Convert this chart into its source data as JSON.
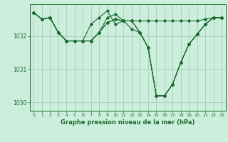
{
  "title": "Graphe pression niveau de la mer (hPa)",
  "xlabel": "Graphe pression niveau de la mer (hPa)",
  "xlim": [
    -0.5,
    23.5
  ],
  "ylim": [
    1029.75,
    1032.95
  ],
  "yticks": [
    1030,
    1031,
    1032
  ],
  "xticks": [
    0,
    1,
    2,
    3,
    4,
    5,
    6,
    7,
    8,
    9,
    10,
    11,
    12,
    13,
    14,
    15,
    16,
    17,
    18,
    19,
    20,
    21,
    22,
    23
  ],
  "bg_color": "#cceedd",
  "grid_color": "#aaccbb",
  "line_color": "#1a6b2a",
  "series": [
    [
      1032.7,
      1032.5,
      1032.55,
      1032.1,
      1031.85,
      1031.85,
      1031.85,
      1031.85,
      1032.1,
      1032.4,
      1032.5,
      1032.45,
      1032.45,
      1032.45,
      1032.45,
      1032.45,
      1032.45,
      1032.45,
      1032.45,
      1032.45,
      1032.45,
      1032.5,
      1032.55,
      1032.55
    ],
    [
      1032.7,
      1032.5,
      1032.55,
      1032.1,
      1031.85,
      1031.85,
      1031.85,
      1031.85,
      1032.1,
      1032.55,
      1032.65,
      1032.45,
      1032.45,
      1032.1,
      1031.65,
      1030.2,
      1030.2,
      1030.55,
      1031.2,
      1031.75,
      1032.05,
      1032.35,
      1032.55,
      1032.55
    ],
    [
      1032.7,
      1032.5,
      1032.55,
      1032.1,
      1031.85,
      1031.85,
      1031.85,
      1032.35,
      1032.55,
      1032.75,
      1032.35,
      1032.45,
      1032.45,
      1032.1,
      1031.65,
      1030.2,
      1030.2,
      1030.55,
      1031.2,
      1031.75,
      1032.05,
      1032.35,
      1032.55,
      1032.55
    ],
    [
      1032.7,
      1032.5,
      1032.55,
      1032.1,
      1031.85,
      1031.85,
      1031.85,
      1031.85,
      1032.1,
      1032.4,
      1032.5,
      1032.45,
      1032.2,
      1032.1,
      1031.65,
      1030.2,
      1030.2,
      1030.55,
      1031.2,
      1031.75,
      1032.05,
      1032.35,
      1032.55,
      1032.55
    ]
  ]
}
